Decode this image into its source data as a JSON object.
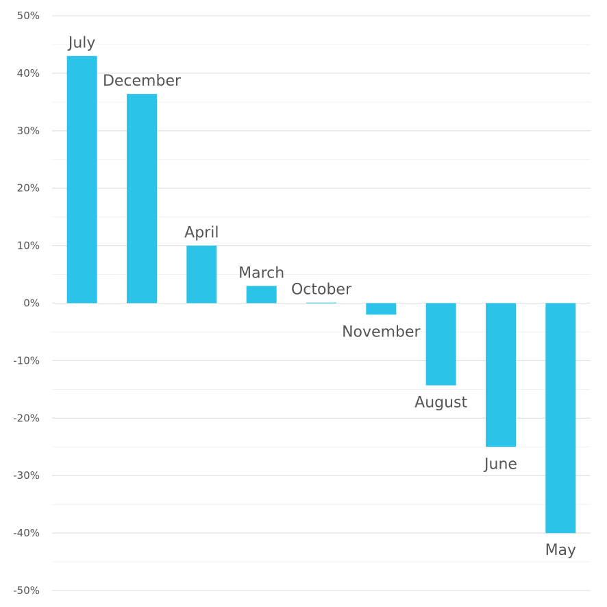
{
  "chart_data": {
    "type": "bar",
    "categories": [
      "July",
      "December",
      "April",
      "March",
      "October",
      "November",
      "August",
      "June",
      "May"
    ],
    "values": [
      43,
      36.4,
      10,
      3,
      0.1,
      -2,
      -14.3,
      -25,
      -40
    ],
    "ylim": [
      -50,
      50
    ],
    "yticks": [
      50,
      40,
      30,
      20,
      10,
      0,
      -10,
      -20,
      -30,
      -40,
      -50
    ],
    "ytick_labels": [
      "50%",
      "40%",
      "30%",
      "20%",
      "10%",
      "0%",
      "-10%",
      "-20%",
      "-30%",
      "-40%",
      "-50%"
    ],
    "title": "",
    "xlabel": "",
    "ylabel": "",
    "grid": true,
    "legend": "none",
    "colors": {
      "bar": "#2bc4e8",
      "label": "#555555",
      "grid": "#e2e2e2",
      "grid_minor": "#f1f1f1"
    }
  }
}
